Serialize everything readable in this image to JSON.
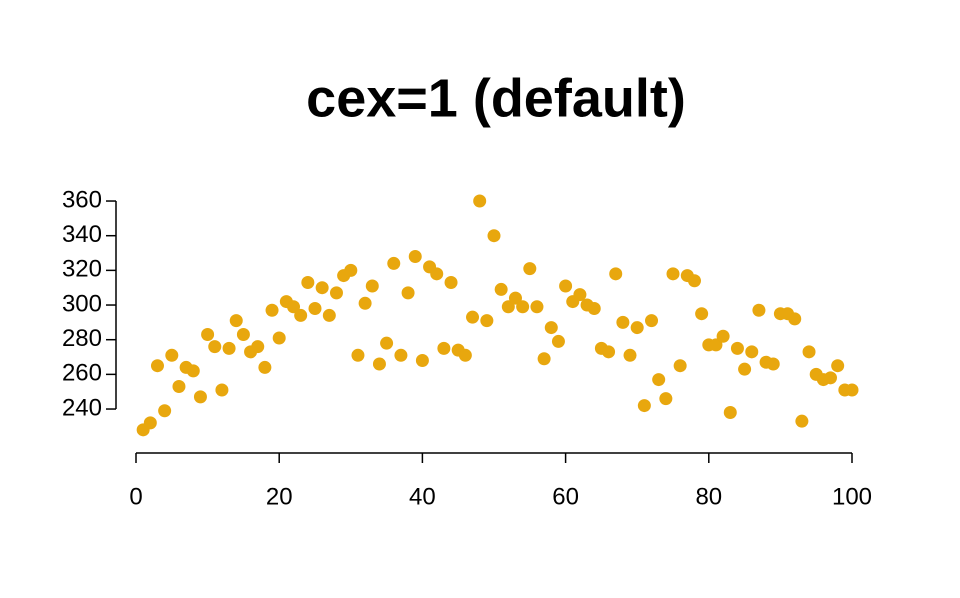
{
  "chart_data": {
    "type": "scatter",
    "title": "cex=1 (default)",
    "color": "#e8a70e",
    "x": [
      1,
      2,
      3,
      4,
      5,
      6,
      7,
      8,
      9,
      10,
      11,
      12,
      13,
      14,
      15,
      16,
      17,
      18,
      19,
      20,
      21,
      22,
      23,
      24,
      25,
      26,
      27,
      28,
      29,
      30,
      31,
      32,
      33,
      34,
      35,
      36,
      37,
      38,
      39,
      40,
      41,
      42,
      43,
      44,
      45,
      46,
      47,
      48,
      49,
      50,
      51,
      52,
      53,
      54,
      55,
      56,
      57,
      58,
      59,
      60,
      61,
      62,
      63,
      64,
      65,
      66,
      67,
      68,
      69,
      70,
      71,
      72,
      73,
      74,
      75,
      76,
      77,
      78,
      79,
      80,
      81,
      82,
      83,
      84,
      85,
      86,
      87,
      88,
      89,
      90,
      91,
      92,
      93,
      94,
      95,
      96,
      97,
      98,
      99,
      100
    ],
    "values": [
      228,
      232,
      265,
      239,
      271,
      253,
      264,
      262,
      247,
      283,
      276,
      251,
      275,
      291,
      283,
      273,
      276,
      264,
      297,
      281,
      302,
      299,
      294,
      313,
      298,
      310,
      294,
      307,
      317,
      320,
      271,
      301,
      311,
      266,
      278,
      324,
      271,
      307,
      328,
      268,
      322,
      318,
      275,
      313,
      274,
      271,
      293,
      360,
      291,
      340,
      309,
      299,
      304,
      299,
      321,
      299,
      269,
      287,
      279,
      311,
      302,
      306,
      300,
      298,
      275,
      273,
      318,
      290,
      271,
      287,
      242,
      291,
      257,
      246,
      318,
      265,
      317,
      314,
      295,
      277,
      277,
      282,
      238,
      275,
      263,
      273,
      297,
      267,
      266,
      295,
      295,
      292,
      233,
      273,
      260,
      257,
      258,
      265,
      251,
      251
    ],
    "xlim": [
      0,
      100
    ],
    "ylim": [
      220,
      370
    ],
    "xticks": [
      0,
      20,
      40,
      60,
      80,
      100
    ],
    "yticks": [
      240,
      260,
      280,
      300,
      320,
      340,
      360
    ]
  }
}
